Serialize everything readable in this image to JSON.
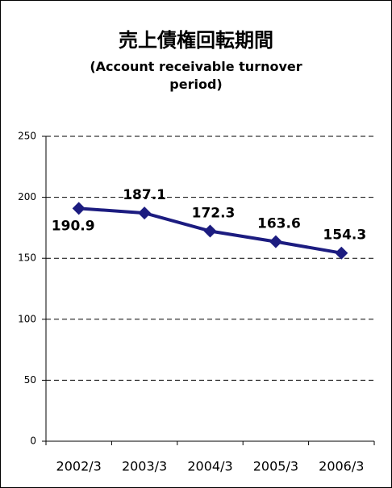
{
  "chart_data": {
    "type": "line",
    "title": "売上債権回転期間",
    "subtitle": "(Account receivable turnover period)",
    "categories": [
      "2002/3",
      "2003/3",
      "2004/3",
      "2005/3",
      "2006/3"
    ],
    "values": [
      190.9,
      187.1,
      172.3,
      163.6,
      154.3
    ],
    "color": "#1c1c80",
    "ylim": [
      0,
      250
    ],
    "yticks": [
      0,
      50,
      100,
      150,
      200,
      250
    ],
    "grid": true
  }
}
